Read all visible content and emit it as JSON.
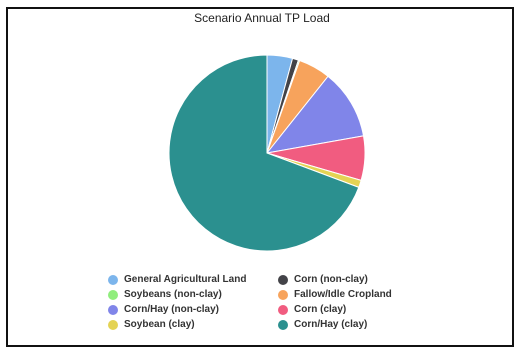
{
  "chart_data": {
    "type": "pie",
    "title": "Scenario Annual TP Load",
    "slices": [
      {
        "label": "General Agricultural Land",
        "value": 4.2,
        "color": "#7cb5ec"
      },
      {
        "label": "Corn (non-clay)",
        "value": 1.0,
        "color": "#434348"
      },
      {
        "label": "Soybeans (non-clay)",
        "value": 0.2,
        "color": "#90ed7d"
      },
      {
        "label": "Fallow/Idle Cropland",
        "value": 5.3,
        "color": "#f7a35c"
      },
      {
        "label": "Corn/Hay (non-clay)",
        "value": 11.5,
        "color": "#8085e9"
      },
      {
        "label": "Corn (clay)",
        "value": 7.3,
        "color": "#f15c80"
      },
      {
        "label": "Soybean (clay)",
        "value": 1.2,
        "color": "#e4d354"
      },
      {
        "label": "Corn/Hay (clay)",
        "value": 69.3,
        "color": "#2b908f"
      }
    ],
    "legend_position": "bottom"
  }
}
